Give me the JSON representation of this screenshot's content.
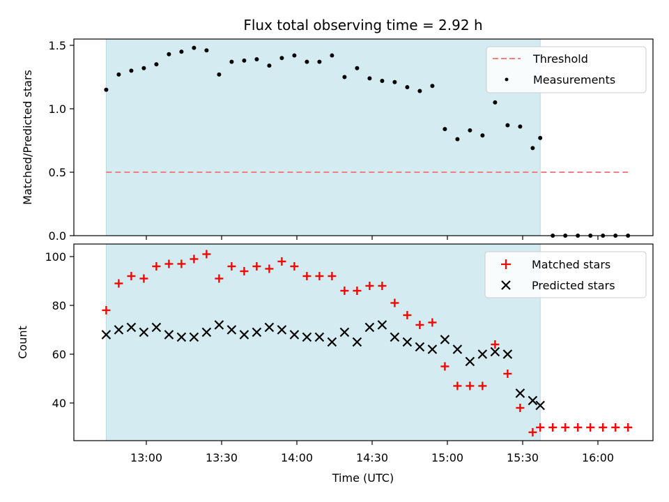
{
  "chart_data": [
    {
      "type": "scatter",
      "title": "Flux total observing time = 2.92 h",
      "xlabel": "",
      "ylabel": "Matched/Predicted stars",
      "ylim": [
        0,
        1.55
      ],
      "yticks": [
        "0.0",
        "0.5",
        "1.0",
        "1.5"
      ],
      "shaded_span": {
        "from": "12:44",
        "to": "15:37",
        "color": "#d4ebf2"
      },
      "legend_position": "top-right",
      "series": [
        {
          "name": "Threshold",
          "kind": "dashed-line",
          "color": "#f08080",
          "x": [
            "12:44",
            "16:12"
          ],
          "y": [
            0.5,
            0.5
          ]
        },
        {
          "name": "Measurements",
          "kind": "dots",
          "color": "#000000",
          "x": [
            "12:44",
            "12:49",
            "12:54",
            "12:59",
            "13:04",
            "13:09",
            "13:14",
            "13:19",
            "13:24",
            "13:29",
            "13:34",
            "13:39",
            "13:44",
            "13:49",
            "13:54",
            "13:59",
            "14:04",
            "14:09",
            "14:14",
            "14:19",
            "14:24",
            "14:29",
            "14:34",
            "14:39",
            "14:44",
            "14:49",
            "14:54",
            "14:59",
            "15:04",
            "15:09",
            "15:14",
            "15:19",
            "15:24",
            "15:29",
            "15:34",
            "15:37",
            "15:42",
            "15:47",
            "15:52",
            "15:57",
            "16:02",
            "16:07",
            "16:12"
          ],
          "y": [
            1.15,
            1.27,
            1.3,
            1.32,
            1.35,
            1.43,
            1.45,
            1.48,
            1.46,
            1.27,
            1.37,
            1.38,
            1.39,
            1.34,
            1.4,
            1.42,
            1.37,
            1.37,
            1.42,
            1.25,
            1.32,
            1.24,
            1.22,
            1.21,
            1.17,
            1.14,
            1.18,
            0.84,
            0.76,
            0.83,
            0.79,
            1.05,
            0.87,
            0.86,
            0.69,
            0.77,
            0.0,
            0.0,
            0.0,
            0.0,
            0.0,
            0.0,
            0.0
          ]
        }
      ]
    },
    {
      "type": "scatter",
      "xlabel": "Time (UTC)",
      "ylabel": "Count",
      "ylim": [
        25,
        104
      ],
      "yticks": [
        "40",
        "60",
        "80",
        "100"
      ],
      "xticks": [
        "13:00",
        "13:30",
        "14:00",
        "14:30",
        "15:00",
        "15:30",
        "16:00"
      ],
      "shaded_span": {
        "from": "12:44",
        "to": "15:37",
        "color": "#d4ebf2"
      },
      "legend_position": "top-right",
      "series": [
        {
          "name": "Matched stars",
          "marker": "+",
          "color": "#ff0000",
          "x": [
            "12:44",
            "12:49",
            "12:54",
            "12:59",
            "13:04",
            "13:09",
            "13:14",
            "13:19",
            "13:24",
            "13:29",
            "13:34",
            "13:39",
            "13:44",
            "13:49",
            "13:54",
            "13:59",
            "14:04",
            "14:09",
            "14:14",
            "14:19",
            "14:24",
            "14:29",
            "14:34",
            "14:39",
            "14:44",
            "14:49",
            "14:54",
            "14:59",
            "15:04",
            "15:09",
            "15:14",
            "15:19",
            "15:24",
            "15:29",
            "15:34",
            "15:37",
            "15:42",
            "15:47",
            "15:52",
            "15:57",
            "16:02",
            "16:07",
            "16:12"
          ],
          "y": [
            78,
            89,
            92,
            91,
            96,
            97,
            97,
            99,
            101,
            91,
            96,
            94,
            96,
            95,
            98,
            96,
            92,
            92,
            92,
            86,
            86,
            88,
            88,
            81,
            76,
            72,
            73,
            55,
            47,
            47,
            47,
            64,
            52,
            38,
            28,
            30,
            30,
            30,
            30,
            30,
            30,
            30,
            30
          ]
        },
        {
          "name": "Predicted stars",
          "marker": "x",
          "color": "#000000",
          "x": [
            "12:44",
            "12:49",
            "12:54",
            "12:59",
            "13:04",
            "13:09",
            "13:14",
            "13:19",
            "13:24",
            "13:29",
            "13:34",
            "13:39",
            "13:44",
            "13:49",
            "13:54",
            "13:59",
            "14:04",
            "14:09",
            "14:14",
            "14:19",
            "14:24",
            "14:29",
            "14:34",
            "14:39",
            "14:44",
            "14:49",
            "14:54",
            "14:59",
            "15:04",
            "15:09",
            "15:14",
            "15:19",
            "15:24",
            "15:29",
            "15:34",
            "15:37"
          ],
          "y": [
            68,
            70,
            71,
            69,
            71,
            68,
            67,
            67,
            69,
            72,
            70,
            68,
            69,
            71,
            70,
            68,
            67,
            67,
            65,
            69,
            65,
            71,
            72,
            67,
            65,
            63,
            62,
            66,
            62,
            57,
            60,
            61,
            60,
            44,
            41,
            39
          ]
        }
      ]
    }
  ]
}
